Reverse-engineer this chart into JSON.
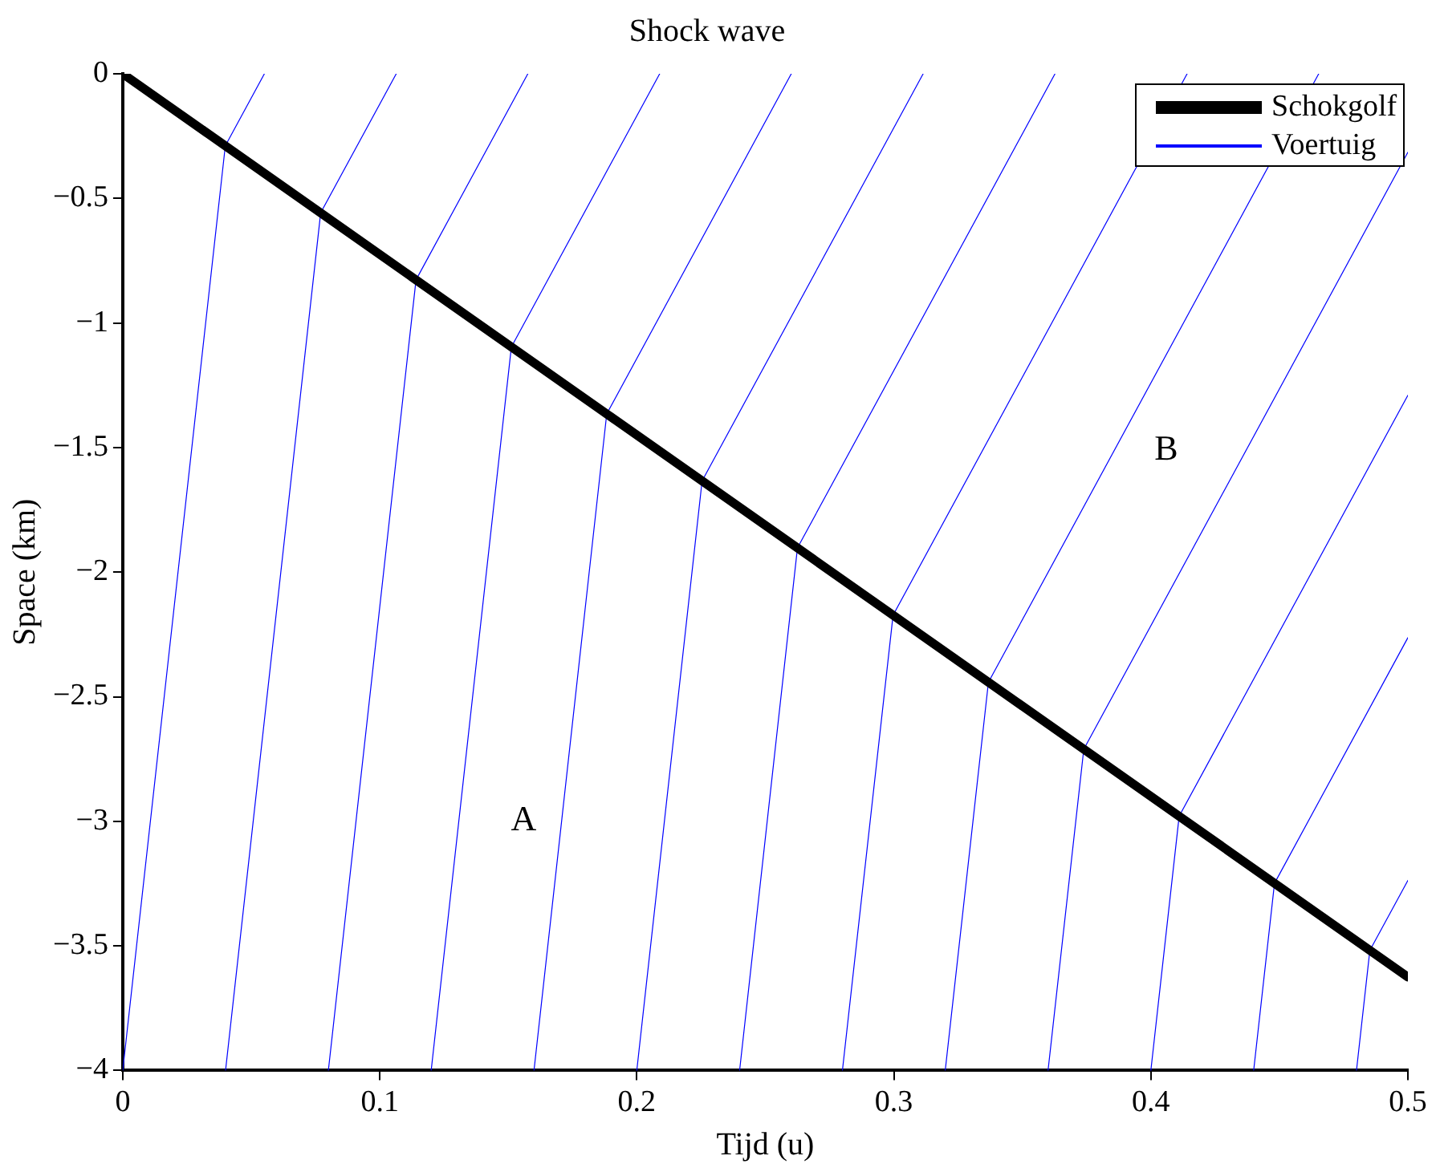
{
  "chart_data": {
    "type": "line",
    "title": "Shock wave",
    "xlabel": "Tijd (u)",
    "ylabel": "Space (km)",
    "xlim": [
      0,
      0.5
    ],
    "xticks": [
      0,
      0.1,
      0.2,
      0.3,
      0.4,
      0.5
    ],
    "ylim": [
      -4,
      0
    ],
    "yticks": [
      0,
      {
        "value": -0.5,
        "label": "−0.5"
      },
      {
        "value": -1,
        "label": "−1"
      },
      {
        "value": -1.5,
        "label": "−1.5"
      },
      {
        "value": -2,
        "label": "−2"
      },
      {
        "value": -2.5,
        "label": "−2.5"
      },
      {
        "value": -3,
        "label": "−3"
      },
      {
        "value": -3.5,
        "label": "−3.5"
      },
      {
        "value": -4,
        "label": "−4"
      }
    ],
    "grid": false,
    "legend": "top right",
    "marker": "none",
    "line_style": "solid",
    "series": [
      {
        "name": "Schokgolf",
        "color": "#000000",
        "x": [
          0,
          0.5
        ],
        "values": [
          0,
          -3.625
        ]
      },
      {
        "name": "Voertuig",
        "color": "#0000ff",
        "x": [
          0,
          0.0399,
          0.0551
        ],
        "values": [
          -4,
          -0.289,
          0
        ]
      },
      {
        "color": "#0000ff",
        "x": [
          0.04,
          0.077,
          0.1064
        ],
        "values": [
          -4,
          -0.558,
          0
        ]
      },
      {
        "color": "#0000ff",
        "x": [
          0.08,
          0.1141,
          0.1576
        ],
        "values": [
          -4,
          -0.827,
          0
        ]
      },
      {
        "color": "#0000ff",
        "x": [
          0.12,
          0.1512,
          0.2089
        ],
        "values": [
          -4,
          -1.096,
          0
        ]
      },
      {
        "color": "#0000ff",
        "x": [
          0.16,
          0.1883,
          0.2601
        ],
        "values": [
          -4,
          -1.365,
          0
        ]
      },
      {
        "color": "#0000ff",
        "x": [
          0.2,
          0.2254,
          0.3114
        ],
        "values": [
          -4,
          -1.634,
          0
        ]
      },
      {
        "color": "#0000ff",
        "x": [
          0.24,
          0.2625,
          0.3627
        ],
        "values": [
          -4,
          -1.903,
          0
        ]
      },
      {
        "color": "#0000ff",
        "x": [
          0.28,
          0.2997,
          0.4141
        ],
        "values": [
          -4,
          -2.173,
          0
        ]
      },
      {
        "color": "#0000ff",
        "x": [
          0.32,
          0.3368,
          0.4653
        ],
        "values": [
          -4,
          -2.442,
          0
        ]
      },
      {
        "color": "#0000ff",
        "x": [
          0.36,
          0.3739,
          0.5
        ],
        "values": [
          -4,
          -2.711,
          -0.315
        ]
      },
      {
        "color": "#0000ff",
        "x": [
          0.4,
          0.411,
          0.5
        ],
        "values": [
          -4,
          -2.98,
          -1.29
        ]
      },
      {
        "color": "#0000ff",
        "x": [
          0.44,
          0.4481,
          0.5
        ],
        "values": [
          -4,
          -3.249,
          -2.263
        ]
      },
      {
        "color": "#0000ff",
        "x": [
          0.48,
          0.4852,
          0.5
        ],
        "values": [
          -4,
          -3.518,
          -3.237
        ]
      }
    ],
    "annotations": [
      "A",
      "B"
    ]
  }
}
